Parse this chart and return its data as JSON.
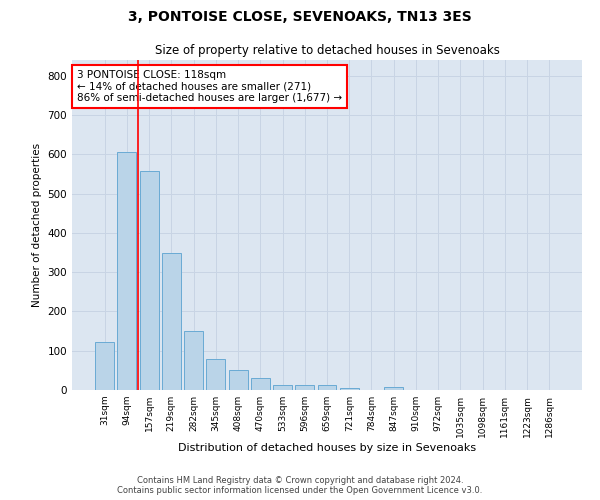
{
  "title": "3, PONTOISE CLOSE, SEVENOAKS, TN13 3ES",
  "subtitle": "Size of property relative to detached houses in Sevenoaks",
  "xlabel": "Distribution of detached houses by size in Sevenoaks",
  "ylabel": "Number of detached properties",
  "categories": [
    "31sqm",
    "94sqm",
    "157sqm",
    "219sqm",
    "282sqm",
    "345sqm",
    "408sqm",
    "470sqm",
    "533sqm",
    "596sqm",
    "659sqm",
    "721sqm",
    "784sqm",
    "847sqm",
    "910sqm",
    "972sqm",
    "1035sqm",
    "1098sqm",
    "1161sqm",
    "1223sqm",
    "1286sqm"
  ],
  "values": [
    122,
    605,
    558,
    348,
    150,
    78,
    52,
    30,
    14,
    13,
    13,
    6,
    0,
    8,
    0,
    0,
    0,
    0,
    0,
    0,
    0
  ],
  "bar_color": "#bad4e8",
  "bar_edge_color": "#6aaad4",
  "grid_color": "#c8d4e4",
  "background_color": "#dce6f1",
  "vline_x": 1.5,
  "vline_color": "red",
  "annotation_text": "3 PONTOISE CLOSE: 118sqm\n← 14% of detached houses are smaller (271)\n86% of semi-detached houses are larger (1,677) →",
  "annotation_box_color": "white",
  "annotation_box_edge": "red",
  "ylim": [
    0,
    840
  ],
  "yticks": [
    0,
    100,
    200,
    300,
    400,
    500,
    600,
    700,
    800
  ],
  "footer_line1": "Contains HM Land Registry data © Crown copyright and database right 2024.",
  "footer_line2": "Contains public sector information licensed under the Open Government Licence v3.0."
}
